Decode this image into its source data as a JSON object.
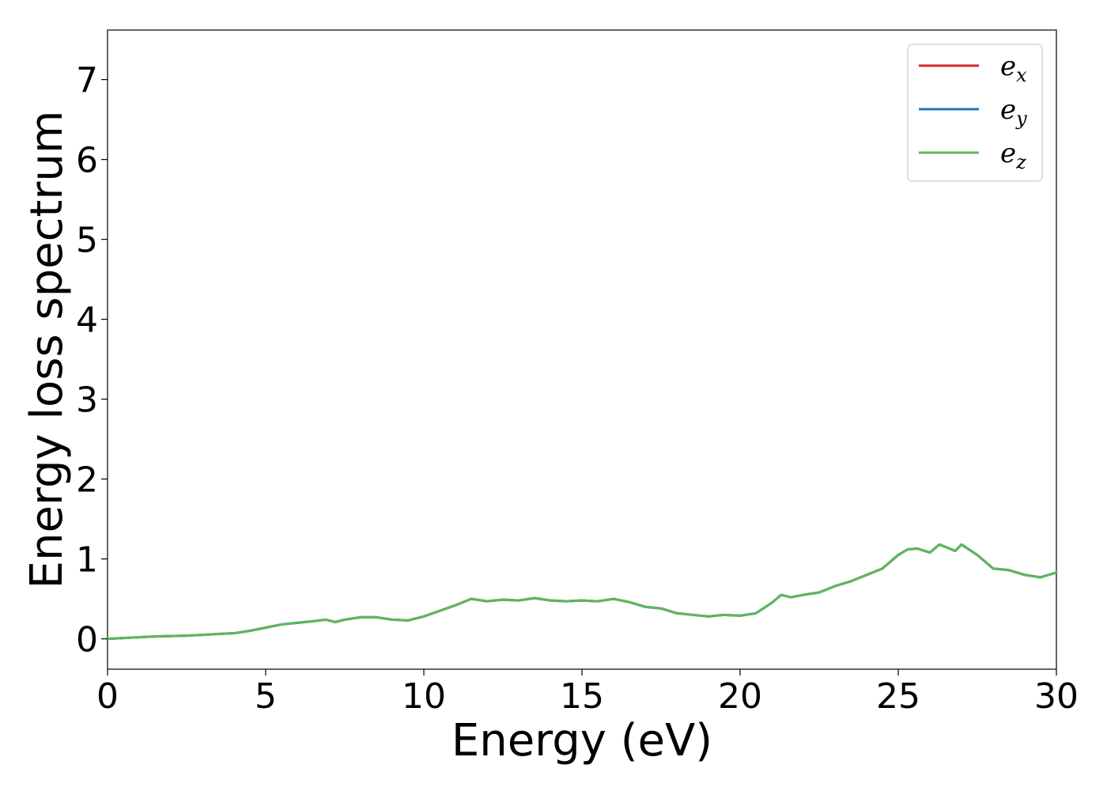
{
  "chart_data": {
    "type": "line",
    "title": "",
    "xlabel": "Energy (eV)",
    "ylabel": "Energy loss spectrum",
    "xlim": [
      0,
      30
    ],
    "ylim": [
      -0.38,
      7.62
    ],
    "x_ticks": [
      0,
      5,
      10,
      15,
      20,
      25,
      30
    ],
    "y_ticks": [
      0,
      1,
      2,
      3,
      4,
      5,
      6,
      7
    ],
    "grid": false,
    "legend_position": "top-right",
    "x": [
      0,
      0.5,
      1,
      1.5,
      2,
      2.5,
      3,
      3.5,
      4,
      4.5,
      5,
      5.5,
      6,
      6.5,
      6.9,
      7.2,
      7.5,
      8,
      8.5,
      9,
      9.5,
      10,
      10.5,
      11,
      11.5,
      12,
      12.5,
      13,
      13.5,
      14,
      14.5,
      15,
      15.5,
      16,
      16.5,
      17,
      17.5,
      18,
      18.5,
      19,
      19.5,
      20,
      20.5,
      21,
      21.3,
      21.6,
      22,
      22.5,
      23,
      23.5,
      24,
      24.5,
      25,
      25.3,
      25.6,
      26,
      26.3,
      26.5,
      26.8,
      27,
      27.5,
      28,
      28.5,
      29,
      29.5,
      30
    ],
    "series": [
      {
        "name": "e_x",
        "color": "#d62728",
        "values": [
          0.0,
          0.01,
          0.02,
          0.03,
          0.035,
          0.04,
          0.05,
          0.06,
          0.07,
          0.1,
          0.14,
          0.18,
          0.2,
          0.22,
          0.24,
          0.21,
          0.24,
          0.27,
          0.27,
          0.24,
          0.23,
          0.28,
          0.35,
          0.42,
          0.5,
          0.47,
          0.49,
          0.48,
          0.51,
          0.48,
          0.47,
          0.48,
          0.47,
          0.5,
          0.46,
          0.4,
          0.38,
          0.32,
          0.3,
          0.28,
          0.3,
          0.29,
          0.32,
          0.45,
          0.55,
          0.52,
          0.55,
          0.58,
          0.66,
          0.72,
          0.8,
          0.88,
          1.05,
          1.12,
          1.13,
          1.08,
          1.18,
          1.15,
          1.1,
          1.18,
          1.05,
          0.88,
          0.86,
          0.8,
          0.77,
          0.83
        ]
      },
      {
        "name": "e_y",
        "color": "#1f77b4",
        "values": [
          0.0,
          0.01,
          0.02,
          0.03,
          0.035,
          0.04,
          0.05,
          0.06,
          0.07,
          0.1,
          0.14,
          0.18,
          0.2,
          0.22,
          0.24,
          0.21,
          0.24,
          0.27,
          0.27,
          0.24,
          0.23,
          0.28,
          0.35,
          0.42,
          0.5,
          0.47,
          0.49,
          0.48,
          0.51,
          0.48,
          0.47,
          0.48,
          0.47,
          0.5,
          0.46,
          0.4,
          0.38,
          0.32,
          0.3,
          0.28,
          0.3,
          0.29,
          0.32,
          0.45,
          0.55,
          0.52,
          0.55,
          0.58,
          0.66,
          0.72,
          0.8,
          0.88,
          1.05,
          1.12,
          1.13,
          1.08,
          1.18,
          1.15,
          1.1,
          1.18,
          1.05,
          0.88,
          0.86,
          0.8,
          0.77,
          0.83
        ]
      },
      {
        "name": "e_z",
        "color": "#5cb85c",
        "values": [
          0.0,
          0.01,
          0.02,
          0.03,
          0.035,
          0.04,
          0.05,
          0.06,
          0.07,
          0.1,
          0.14,
          0.18,
          0.2,
          0.22,
          0.24,
          0.21,
          0.24,
          0.27,
          0.27,
          0.24,
          0.23,
          0.28,
          0.35,
          0.42,
          0.5,
          0.47,
          0.49,
          0.48,
          0.51,
          0.48,
          0.47,
          0.48,
          0.47,
          0.5,
          0.46,
          0.4,
          0.38,
          0.32,
          0.3,
          0.28,
          0.3,
          0.29,
          0.32,
          0.45,
          0.55,
          0.52,
          0.55,
          0.58,
          0.66,
          0.72,
          0.8,
          0.88,
          1.05,
          1.12,
          1.13,
          1.08,
          1.18,
          1.15,
          1.1,
          1.18,
          1.05,
          0.88,
          0.86,
          0.8,
          0.77,
          0.83
        ]
      }
    ],
    "legend": [
      {
        "base": "e",
        "sub": "x"
      },
      {
        "base": "e",
        "sub": "y"
      },
      {
        "base": "e",
        "sub": "z"
      }
    ]
  }
}
